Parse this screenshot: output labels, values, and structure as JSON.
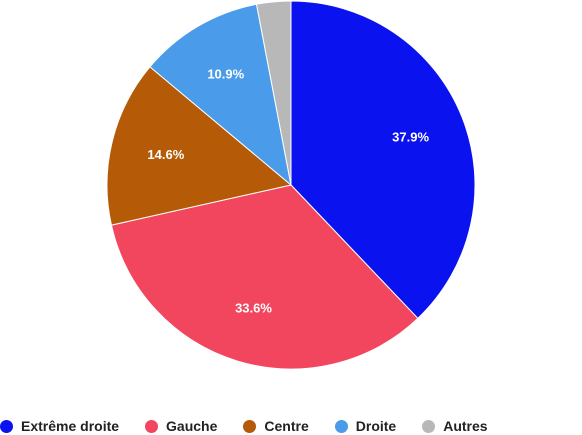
{
  "chart_data": {
    "type": "pie",
    "title": "",
    "categories": [
      "Extrême droite",
      "Gauche",
      "Centre",
      "Droite",
      "Autres"
    ],
    "values": [
      37.9,
      33.6,
      14.6,
      10.9,
      3.0
    ],
    "labels": [
      "37.9%",
      "33.6%",
      "14.6%",
      "10.9%",
      ""
    ],
    "colors": [
      "#0a12f0",
      "#f2465f",
      "#b55a06",
      "#4a9bea",
      "#b8b8b8"
    ],
    "start_angle_deg": 0,
    "direction": "clockwise",
    "legend_position": "bottom"
  }
}
